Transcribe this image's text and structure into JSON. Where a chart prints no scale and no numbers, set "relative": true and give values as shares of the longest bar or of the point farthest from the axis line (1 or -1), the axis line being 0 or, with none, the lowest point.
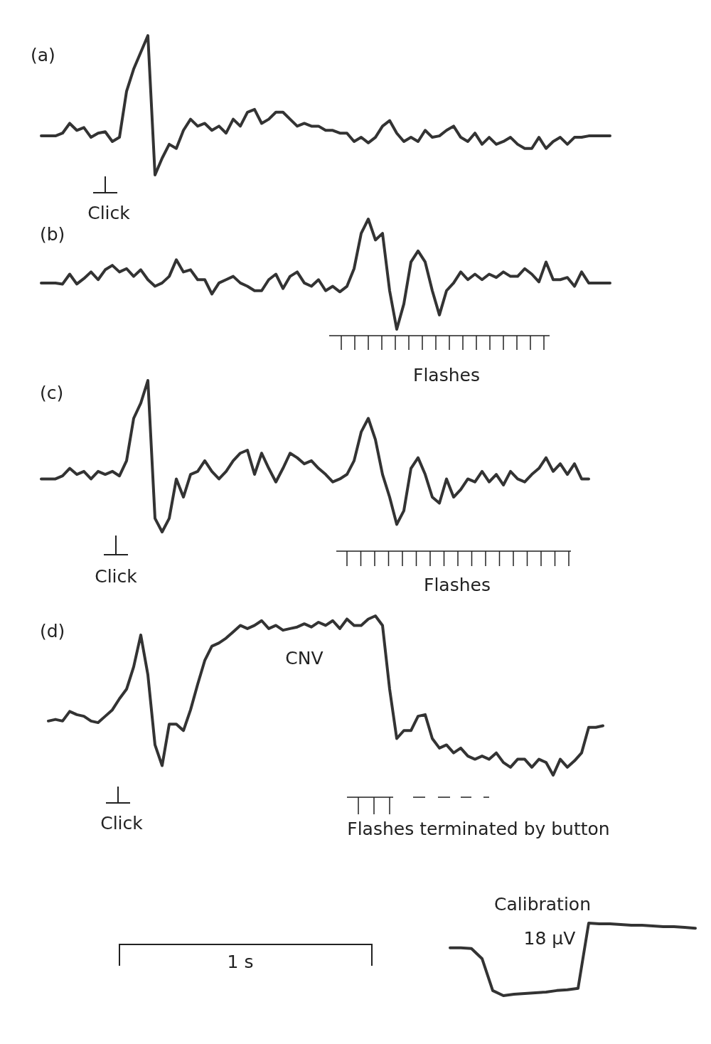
{
  "chart_data": [
    {
      "type": "line",
      "title": "(a)",
      "relative": true,
      "categories": [
        null,
        null,
        null,
        null,
        null,
        null,
        null,
        null,
        null,
        null,
        null,
        null,
        null,
        null,
        null,
        null,
        null,
        null,
        null,
        null,
        null,
        null,
        null,
        null,
        null,
        null,
        null,
        null,
        null,
        null,
        null,
        null,
        null,
        null,
        null,
        null,
        null,
        null,
        null,
        null,
        null,
        null,
        null,
        null,
        null,
        null,
        null,
        null,
        null,
        null,
        null,
        null,
        null,
        null,
        null,
        null,
        null,
        null,
        null,
        null,
        null,
        null,
        null,
        null,
        null,
        null,
        null,
        null,
        null,
        null,
        null,
        null,
        null,
        null,
        null,
        null,
        null,
        null,
        null,
        null,
        null
      ],
      "series": [
        {
          "color": "#333333",
          "values": [
            0.28,
            0.28,
            0.28,
            0.3,
            0.37,
            0.32,
            0.34,
            0.27,
            0.3,
            0.31,
            0.24,
            0.27,
            0.6,
            0.76,
            0.88,
            1,
            0,
            0.12,
            0.22,
            0.19,
            0.32,
            0.4,
            0.35,
            0.37,
            0.32,
            0.35,
            0.3,
            0.4,
            0.35,
            0.45,
            0.47,
            0.37,
            0.4,
            0.45,
            0.45,
            0.4,
            0.35,
            0.37,
            0.35,
            0.35,
            0.32,
            0.32,
            0.3,
            0.3,
            0.24,
            0.27,
            0.23,
            0.27,
            0.35,
            0.39,
            0.3,
            0.24,
            0.27,
            0.24,
            0.32,
            0.27,
            0.28,
            0.32,
            0.35,
            0.27,
            0.24,
            0.3,
            0.22,
            0.27,
            0.22,
            0.24,
            0.27,
            0.22,
            0.19,
            0.19,
            0.27,
            0.19,
            0.24,
            0.27,
            0.22,
            0.27,
            0.27,
            0.28,
            0.28,
            0.28,
            0.28
          ]
        }
      ],
      "annotations": [
        "Click"
      ]
    },
    {
      "type": "line",
      "title": "(b)",
      "relative": true,
      "categories": [
        null,
        null,
        null,
        null,
        null,
        null,
        null,
        null,
        null,
        null,
        null,
        null,
        null,
        null,
        null,
        null,
        null,
        null,
        null,
        null,
        null,
        null,
        null,
        null,
        null,
        null,
        null,
        null,
        null,
        null,
        null,
        null,
        null,
        null,
        null,
        null,
        null,
        null,
        null,
        null,
        null,
        null,
        null,
        null,
        null,
        null,
        null,
        null,
        null,
        null,
        null,
        null,
        null,
        null,
        null,
        null,
        null,
        null,
        null,
        null,
        null,
        null,
        null,
        null,
        null,
        null,
        null,
        null,
        null,
        null,
        null,
        null,
        null,
        null,
        null,
        null,
        null,
        null,
        null,
        null,
        null
      ],
      "series": [
        {
          "color": "#333333",
          "values": [
            0.42,
            0.42,
            0.42,
            0.41,
            0.5,
            0.41,
            0.46,
            0.52,
            0.45,
            0.54,
            0.58,
            0.52,
            0.55,
            0.48,
            0.54,
            0.45,
            0.39,
            0.42,
            0.48,
            0.63,
            0.52,
            0.54,
            0.45,
            0.45,
            0.32,
            0.42,
            0.45,
            0.48,
            0.42,
            0.39,
            0.35,
            0.35,
            0.45,
            0.5,
            0.37,
            0.48,
            0.52,
            0.42,
            0.39,
            0.45,
            0.35,
            0.39,
            0.34,
            0.39,
            0.55,
            0.87,
            1,
            0.81,
            0.87,
            0.35,
            0,
            0.23,
            0.61,
            0.71,
            0.61,
            0.35,
            0.13,
            0.35,
            0.42,
            0.52,
            0.45,
            0.5,
            0.45,
            0.5,
            0.47,
            0.52,
            0.48,
            0.48,
            0.55,
            0.5,
            0.43,
            0.61,
            0.45,
            0.45,
            0.47,
            0.39,
            0.52,
            0.42,
            0.42,
            0.42,
            0.42
          ]
        }
      ],
      "annotations": [
        "Flashes"
      ]
    },
    {
      "type": "line",
      "title": "(c)",
      "relative": true,
      "categories": [
        null,
        null,
        null,
        null,
        null,
        null,
        null,
        null,
        null,
        null,
        null,
        null,
        null,
        null,
        null,
        null,
        null,
        null,
        null,
        null,
        null,
        null,
        null,
        null,
        null,
        null,
        null,
        null,
        null,
        null,
        null,
        null,
        null,
        null,
        null,
        null,
        null,
        null,
        null,
        null,
        null,
        null,
        null,
        null,
        null,
        null,
        null,
        null,
        null,
        null,
        null,
        null,
        null,
        null,
        null,
        null,
        null,
        null,
        null,
        null,
        null,
        null,
        null,
        null,
        null,
        null,
        null,
        null,
        null,
        null,
        null,
        null,
        null,
        null,
        null,
        null,
        null,
        null,
        null,
        null,
        null
      ],
      "series": [
        {
          "color": "#333333",
          "values": [
            0.35,
            0.35,
            0.35,
            0.37,
            0.42,
            0.38,
            0.4,
            0.35,
            0.4,
            0.38,
            0.4,
            0.37,
            0.47,
            0.75,
            0.85,
            1,
            0.09,
            0,
            0.09,
            0.35,
            0.23,
            0.38,
            0.4,
            0.47,
            0.4,
            0.35,
            0.4,
            0.47,
            0.52,
            0.54,
            0.38,
            0.52,
            0.42,
            0.33,
            0.42,
            0.52,
            0.49,
            0.45,
            0.47,
            0.42,
            0.38,
            0.33,
            0.35,
            0.38,
            0.47,
            0.66,
            0.75,
            0.61,
            0.38,
            0.23,
            0.05,
            0.14,
            0.42,
            0.49,
            0.38,
            0.23,
            0.19,
            0.35,
            0.23,
            0.28,
            0.35,
            0.33,
            0.4,
            0.33,
            0.38,
            0.31,
            0.4,
            0.35,
            0.33,
            0.38,
            0.42,
            0.49,
            0.4,
            0.45,
            0.38,
            0.45,
            0.35,
            0.35,
            null,
            null,
            null
          ]
        }
      ],
      "annotations": [
        "Click",
        "Flashes"
      ]
    },
    {
      "type": "line",
      "title": "(d)",
      "relative": true,
      "categories": [
        null,
        null,
        null,
        null,
        null,
        null,
        null,
        null,
        null,
        null,
        null,
        null,
        null,
        null,
        null,
        null,
        null,
        null,
        null,
        null,
        null,
        null,
        null,
        null,
        null,
        null,
        null,
        null,
        null,
        null,
        null,
        null,
        null,
        null,
        null,
        null,
        null,
        null,
        null,
        null,
        null,
        null,
        null,
        null,
        null,
        null,
        null,
        null,
        null,
        null,
        null,
        null,
        null,
        null,
        null,
        null,
        null,
        null,
        null,
        null,
        null,
        null,
        null,
        null,
        null,
        null,
        null,
        null,
        null,
        null,
        null,
        null,
        null,
        null,
        null,
        null,
        null,
        null,
        null,
        null,
        null
      ],
      "series": [
        {
          "color": "#333333",
          "values": [
            null,
            0.34,
            0.35,
            0.34,
            0.4,
            0.38,
            0.37,
            0.34,
            0.33,
            0.37,
            0.41,
            0.48,
            0.54,
            0.68,
            0.88,
            0.63,
            0.19,
            0.06,
            0.32,
            0.32,
            0.28,
            0.41,
            0.57,
            0.72,
            0.81,
            0.83,
            0.86,
            0.9,
            0.94,
            0.92,
            0.94,
            0.97,
            0.92,
            0.94,
            0.91,
            0.92,
            0.93,
            0.95,
            0.93,
            0.96,
            0.94,
            0.97,
            0.92,
            0.98,
            0.94,
            0.94,
            0.98,
            1,
            0.94,
            0.54,
            0.23,
            0.28,
            0.28,
            0.37,
            0.38,
            0.23,
            0.17,
            0.19,
            0.14,
            0.17,
            0.12,
            0.1,
            0.12,
            0.1,
            0.14,
            0.08,
            0.05,
            0.1,
            0.1,
            0.05,
            0.1,
            0.08,
            0,
            0.1,
            0.05,
            0.09,
            0.14,
            0.3,
            0.3,
            0.31,
            null
          ]
        }
      ],
      "annotations": [
        "CNV",
        "Click",
        "Flashes terminated by button",
        "1 s"
      ]
    },
    {
      "type": "line",
      "relative": true,
      "categories": [
        null,
        null,
        null,
        null,
        null,
        null,
        null,
        null,
        null,
        null,
        null,
        null,
        null,
        null,
        null,
        null,
        null,
        null,
        null,
        null,
        null,
        null,
        null,
        null
      ],
      "series": [
        {
          "color": "#333333",
          "values": [
            0.66,
            0.66,
            0.65,
            0.51,
            0.07,
            0,
            0.02,
            0.03,
            0.04,
            0.05,
            0.07,
            0.08,
            0.1,
            1,
            0.99,
            0.99,
            0.98,
            0.97,
            0.97,
            0.96,
            0.95,
            0.95,
            0.94,
            0.93
          ]
        }
      ],
      "annotations": [
        "Calibration",
        "18 μV"
      ]
    }
  ]
}
